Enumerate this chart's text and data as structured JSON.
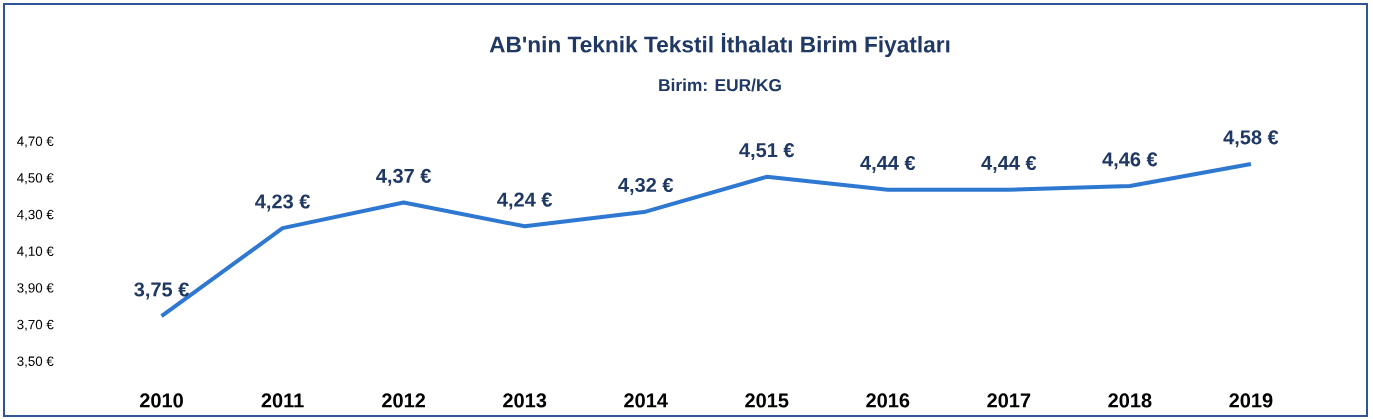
{
  "chart_data": {
    "type": "line",
    "title": "AB'nin Teknik Tekstil İthalatı Birim Fiyatları",
    "subtitle": "Birim: EUR/KG",
    "categories": [
      "2010",
      "2011",
      "2012",
      "2013",
      "2014",
      "2015",
      "2016",
      "2017",
      "2018",
      "2019"
    ],
    "series": [
      {
        "color": "#2f78d2",
        "values": [
          3.75,
          4.23,
          4.37,
          4.24,
          4.32,
          4.51,
          4.44,
          4.44,
          4.46,
          4.58
        ],
        "value_labels": [
          "3,75 €",
          "4,23 €",
          "4,37 €",
          "4,24 €",
          "4,32 €",
          "4,51 €",
          "4,44 €",
          "4,44 €",
          "4,46 €",
          "4,58 €"
        ]
      }
    ],
    "ylim": [
      3.5,
      4.7
    ],
    "yticks": [
      {
        "value": 3.5,
        "label": "3,50 €"
      },
      {
        "value": 3.7,
        "label": "3,70 €"
      },
      {
        "value": 3.9,
        "label": "3,90 €"
      },
      {
        "value": 4.1,
        "label": "4,10 €"
      },
      {
        "value": 4.3,
        "label": "4,30 €"
      },
      {
        "value": 4.5,
        "label": "4,50 €"
      },
      {
        "value": 4.7,
        "label": "4,70 €"
      }
    ],
    "grid": false,
    "marker": "none",
    "line_style": "solid"
  }
}
